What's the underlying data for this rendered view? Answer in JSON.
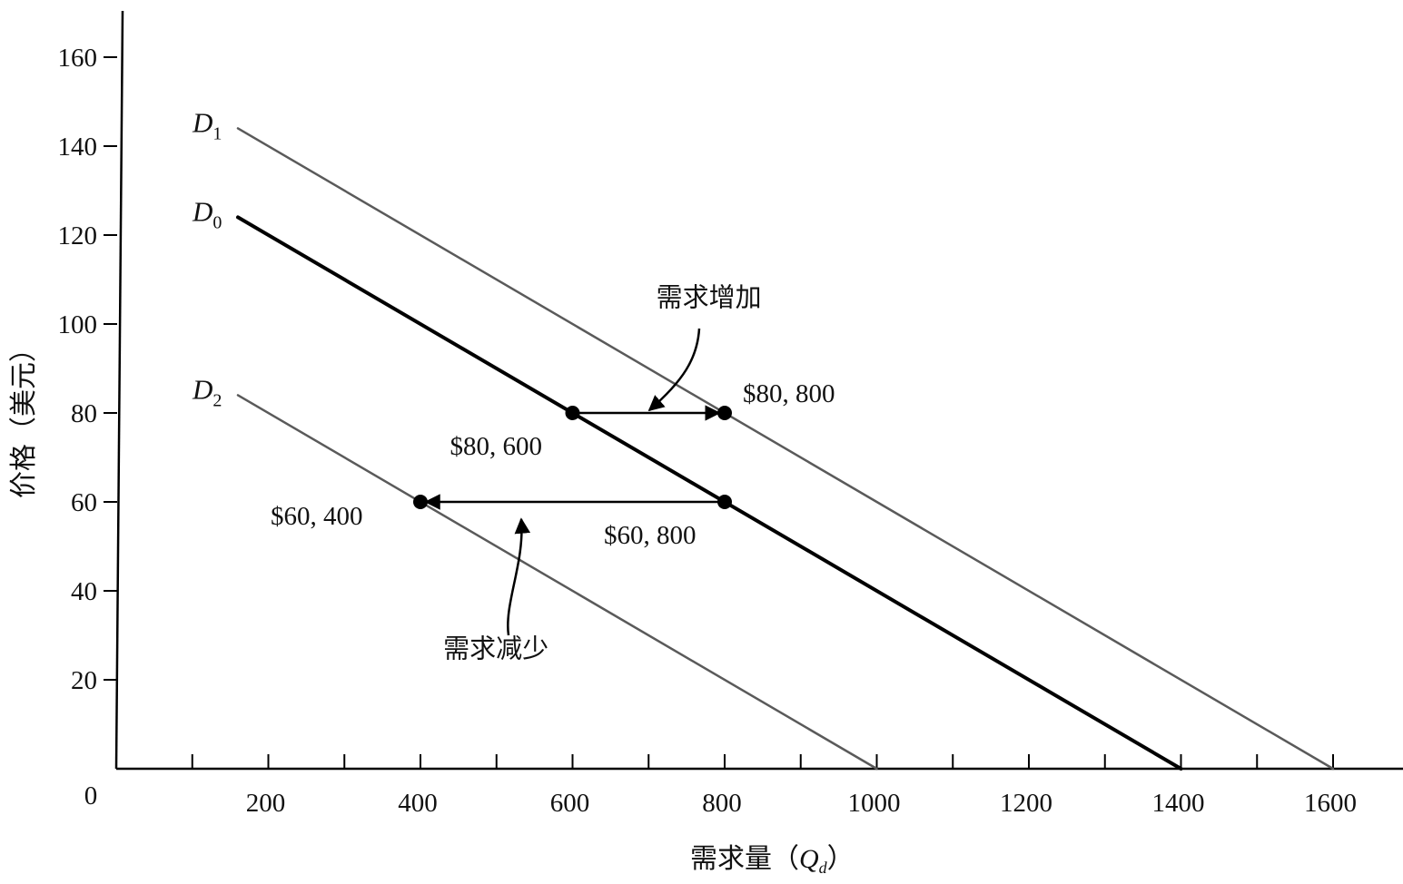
{
  "chart_data": {
    "type": "line",
    "xlabel": "需求量（",
    "xlabel_var": "Q",
    "xlabel_sub": "d",
    "ylabel": "价格（美元）",
    "origin_label": "0",
    "xlim": [
      0,
      1650
    ],
    "ylim": [
      0,
      170
    ],
    "x_ticks": [
      100,
      200,
      300,
      400,
      500,
      600,
      700,
      800,
      900,
      1000,
      1100,
      1200,
      1300,
      1400,
      1500,
      1600
    ],
    "x_tick_labels": [
      {
        "x": 200,
        "text": "200"
      },
      {
        "x": 400,
        "text": "400"
      },
      {
        "x": 600,
        "text": "600"
      },
      {
        "x": 800,
        "text": "800"
      },
      {
        "x": 1000,
        "text": "1000"
      },
      {
        "x": 1200,
        "text": "1200"
      },
      {
        "x": 1400,
        "text": "1400"
      },
      {
        "x": 1600,
        "text": "1600"
      }
    ],
    "y_ticks": [
      {
        "y": 20,
        "text": "20"
      },
      {
        "y": 40,
        "text": "40"
      },
      {
        "y": 60,
        "text": "60"
      },
      {
        "y": 80,
        "text": "80"
      },
      {
        "y": 100,
        "text": "100"
      },
      {
        "y": 120,
        "text": "120"
      },
      {
        "y": 140,
        "text": "140"
      },
      {
        "y": 160,
        "text": "160"
      }
    ],
    "series": [
      {
        "name": "D",
        "sub": "1",
        "style": "thin",
        "color": "#5a5a5a",
        "points": [
          [
            160,
            144
          ],
          [
            1600,
            0
          ]
        ]
      },
      {
        "name": "D",
        "sub": "0",
        "style": "thick",
        "color": "#000000",
        "points": [
          [
            160,
            124
          ],
          [
            1400,
            0
          ]
        ]
      },
      {
        "name": "D",
        "sub": "2",
        "style": "thin",
        "color": "#5a5a5a",
        "points": [
          [
            160,
            84
          ],
          [
            1000,
            0
          ]
        ]
      }
    ],
    "points": [
      {
        "id": "p-80-600",
        "x": 600,
        "y": 80,
        "label": "$80, 600"
      },
      {
        "id": "p-80-800",
        "x": 800,
        "y": 80,
        "label": "$80, 800"
      },
      {
        "id": "p-60-800",
        "x": 800,
        "y": 60,
        "label": "$60, 800"
      },
      {
        "id": "p-60-400",
        "x": 400,
        "y": 60,
        "label": "$60, 400"
      }
    ],
    "annotations": [
      {
        "id": "increase",
        "text": "需求增加",
        "x": 710,
        "y": 104
      },
      {
        "id": "decrease",
        "text": "需求减少",
        "x": 430,
        "y": 25
      }
    ]
  }
}
